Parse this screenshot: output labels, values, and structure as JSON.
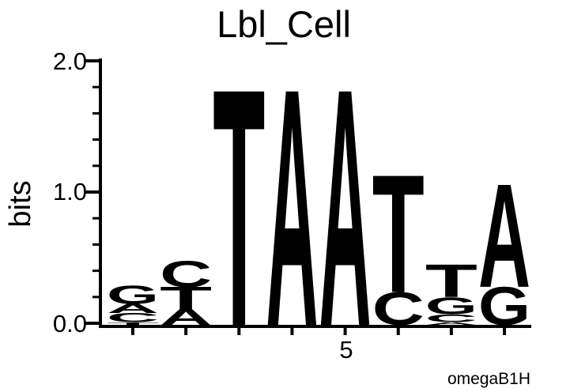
{
  "chart_data": {
    "type": "sequence_logo",
    "title": "Lbl_Cell",
    "ylabel": "bits",
    "ylim": [
      0.0,
      2.0
    ],
    "yticks": [
      0.0,
      1.0,
      2.0
    ],
    "ytick_labels": [
      "0.0",
      "1.0",
      "2.0"
    ],
    "minor_tick_step": 0.2,
    "x_tick_label": "5",
    "x_tick_position": 5,
    "caption": "omegaB1H",
    "n_positions": 8,
    "colors": {
      "A": "#008000",
      "C": "#0000EE",
      "G": "#FFA500",
      "T": "#FF0000"
    },
    "positions": [
      {
        "index": 1,
        "stack": [
          {
            "base": "T",
            "bits": 0.02
          },
          {
            "base": "C",
            "bits": 0.07
          },
          {
            "base": "A",
            "bits": 0.07
          },
          {
            "base": "G",
            "bits": 0.14
          }
        ]
      },
      {
        "index": 2,
        "stack": [
          {
            "base": "A",
            "bits": 0.12
          },
          {
            "base": "T",
            "bits": 0.17
          },
          {
            "base": "C",
            "bits": 0.2
          }
        ]
      },
      {
        "index": 3,
        "stack": [
          {
            "base": "T",
            "bits": 1.81
          }
        ]
      },
      {
        "index": 4,
        "stack": [
          {
            "base": "A",
            "bits": 1.81
          }
        ]
      },
      {
        "index": 5,
        "stack": [
          {
            "base": "A",
            "bits": 1.81
          }
        ]
      },
      {
        "index": 6,
        "stack": [
          {
            "base": "C",
            "bits": 0.25
          },
          {
            "base": "T",
            "bits": 0.9
          }
        ]
      },
      {
        "index": 7,
        "stack": [
          {
            "base": "A",
            "bits": 0.02
          },
          {
            "base": "C",
            "bits": 0.06
          },
          {
            "base": "G",
            "bits": 0.13
          },
          {
            "base": "T",
            "bits": 0.25
          }
        ]
      },
      {
        "index": 8,
        "stack": [
          {
            "base": "G",
            "bits": 0.29
          },
          {
            "base": "A",
            "bits": 0.79
          }
        ]
      }
    ]
  }
}
